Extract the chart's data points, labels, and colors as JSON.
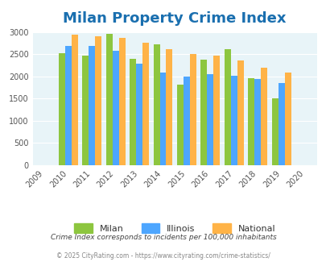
{
  "title": "Milan Property Crime Index",
  "years": [
    2009,
    2010,
    2011,
    2012,
    2013,
    2014,
    2015,
    2016,
    2017,
    2018,
    2019,
    2020
  ],
  "milan": [
    null,
    2520,
    2460,
    2960,
    2400,
    2720,
    1820,
    2370,
    2610,
    1960,
    1510,
    null
  ],
  "illinois": [
    null,
    2680,
    2680,
    2580,
    2280,
    2090,
    2000,
    2050,
    2010,
    1940,
    1850,
    null
  ],
  "national": [
    null,
    2930,
    2910,
    2860,
    2750,
    2610,
    2500,
    2470,
    2360,
    2190,
    2090,
    null
  ],
  "milan_color": "#8dc63f",
  "illinois_color": "#4da6ff",
  "national_color": "#ffb347",
  "bg_color": "#e8f4f8",
  "ylim": [
    0,
    3000
  ],
  "yticks": [
    0,
    500,
    1000,
    1500,
    2000,
    2500,
    3000
  ],
  "title_color": "#1a6faf",
  "title_fontsize": 13,
  "legend_labels": [
    "Milan",
    "Illinois",
    "National"
  ],
  "footnote1": "Crime Index corresponds to incidents per 100,000 inhabitants",
  "footnote2": "© 2025 CityRating.com - https://www.cityrating.com/crime-statistics/",
  "footnote_color": "#444444",
  "footnote2_color": "#888888"
}
